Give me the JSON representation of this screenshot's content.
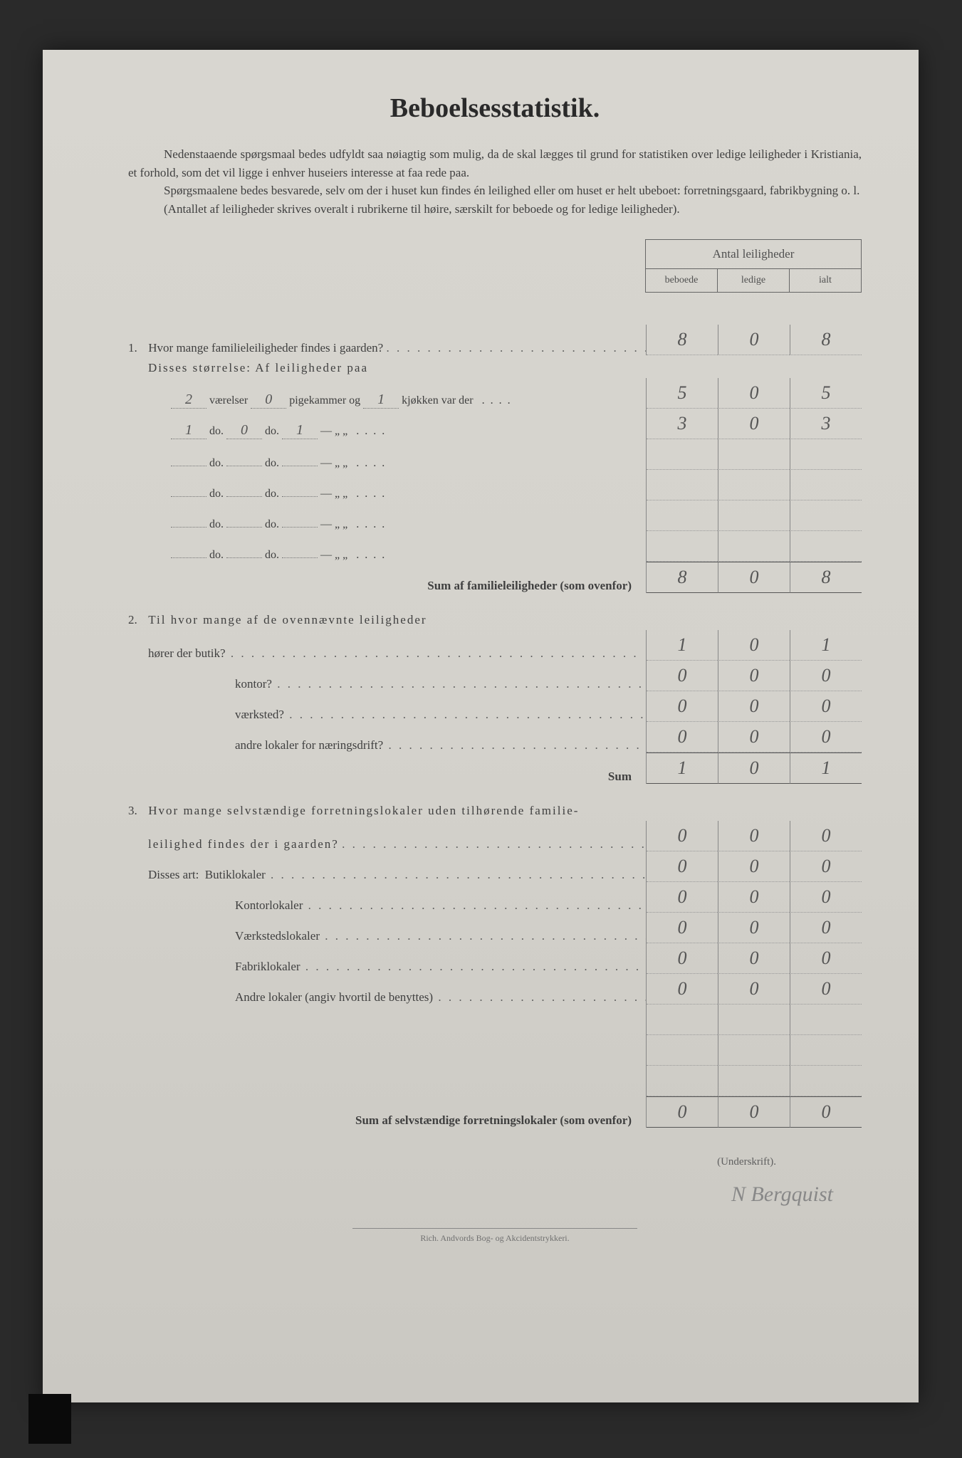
{
  "title": "Beboelsesstatistik.",
  "intro": {
    "p1": "Nedenstaaende spørgsmaal bedes udfyldt saa nøiagtig som mulig, da de skal lægges til grund for statistiken over ledige leiligheder i Kristiania, et forhold, som det vil ligge i enhver huseiers interesse at faa rede paa.",
    "p2": "Spørgsmaalene bedes besvarede, selv om der i huset kun findes én leilighed eller om huset er helt ubeboet: forretningsgaard, fabrikbygning o. l.",
    "p3": "(Antallet af leiligheder skrives overalt i rubrikerne til høire, særskilt for beboede og for ledige leiligheder)."
  },
  "header": {
    "top": "Antal leiligheder",
    "c1": "beboede",
    "c2": "ledige",
    "c3": "ialt"
  },
  "q1": {
    "num": "1.",
    "text": "Hvor mange familieleiligheder findes i gaarden?",
    "sub": "Disses størrelse:  Af leiligheder paa",
    "rows": [
      {
        "v": "2",
        "p": "0",
        "k": "1",
        "text1": "værelser",
        "text2": "pigekammer og",
        "text3": "kjøkken var der",
        "b": "5",
        "l": "0",
        "i": "5"
      },
      {
        "v": "1",
        "p": "0",
        "k": "1",
        "text1": "do.",
        "text2": "do.",
        "text3": "—    „   „",
        "b": "3",
        "l": "0",
        "i": "3"
      },
      {
        "v": "",
        "p": "",
        "k": "",
        "text1": "do.",
        "text2": "do.",
        "text3": "—    „   „",
        "b": "",
        "l": "",
        "i": ""
      },
      {
        "v": "",
        "p": "",
        "k": "",
        "text1": "do.",
        "text2": "do.",
        "text3": "—    „   „",
        "b": "",
        "l": "",
        "i": ""
      },
      {
        "v": "",
        "p": "",
        "k": "",
        "text1": "do.",
        "text2": "do.",
        "text3": "—    „   „",
        "b": "",
        "l": "",
        "i": ""
      },
      {
        "v": "",
        "p": "",
        "k": "",
        "text1": "do.",
        "text2": "do.",
        "text3": "—    „   „",
        "b": "",
        "l": "",
        "i": ""
      }
    ],
    "sum_label": "Sum af familieleiligheder (som ovenfor)",
    "sum": {
      "b": "8",
      "l": "0",
      "i": "8"
    }
  },
  "q2": {
    "num": "2.",
    "text": "Til hvor mange af de ovennævnte leiligheder",
    "rows": [
      {
        "label": "hører der butik?",
        "b": "1",
        "l": "0",
        "i": "1"
      },
      {
        "label": "kontor?",
        "b": "0",
        "l": "0",
        "i": "0"
      },
      {
        "label": "værksted?",
        "b": "0",
        "l": "0",
        "i": "0"
      },
      {
        "label": "andre lokaler for næringsdrift?",
        "b": "0",
        "l": "0",
        "i": "0"
      }
    ],
    "sum_label": "Sum",
    "sum": {
      "b": "1",
      "l": "0",
      "i": "1"
    }
  },
  "q3": {
    "num": "3.",
    "text1": "Hvor mange selvstændige forretningslokaler uden tilhørende familie-",
    "text2": "leilighed findes der i gaarden?",
    "head": {
      "b": "0",
      "l": "0",
      "i": "0"
    },
    "sub": "Disses art:",
    "rows": [
      {
        "label": "Butiklokaler",
        "b": "0",
        "l": "0",
        "i": "0"
      },
      {
        "label": "Kontorlokaler",
        "b": "0",
        "l": "0",
        "i": "0"
      },
      {
        "label": "Værkstedslokaler",
        "b": "0",
        "l": "0",
        "i": "0"
      },
      {
        "label": "Fabriklokaler",
        "b": "0",
        "l": "0",
        "i": "0"
      },
      {
        "label": "Andre lokaler (angiv hvortil de benyttes)",
        "b": "0",
        "l": "0",
        "i": "0"
      },
      {
        "label": "",
        "b": "",
        "l": "",
        "i": ""
      },
      {
        "label": "",
        "b": "",
        "l": "",
        "i": ""
      },
      {
        "label": "",
        "b": "",
        "l": "",
        "i": ""
      }
    ],
    "sum_label": "Sum af selvstændige forretningslokaler (som ovenfor)",
    "sum": {
      "b": "0",
      "l": "0",
      "i": "0"
    }
  },
  "underskrift": "(Underskrift).",
  "signature": "N Bergquist",
  "footer": "Rich. Andvords Bog- og Akcidentstrykkeri."
}
